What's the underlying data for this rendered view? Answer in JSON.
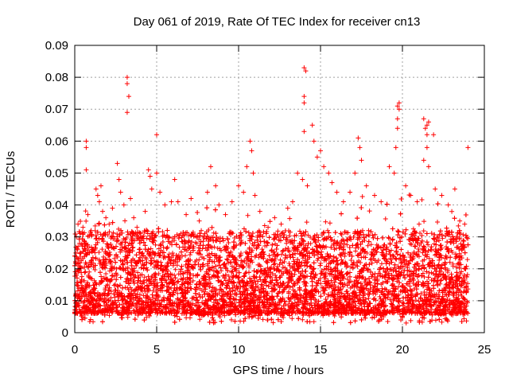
{
  "chart_data": {
    "type": "scatter",
    "title": "Day 061 of 2019, Rate Of TEC Index for receiver cn13",
    "xlabel": "GPS time / hours",
    "ylabel": "ROTI / TECUs",
    "xlim": [
      0,
      25
    ],
    "ylim": [
      0,
      0.09
    ],
    "xticks": [
      0,
      5,
      10,
      15,
      20,
      25
    ],
    "xtick_labels": [
      "0",
      "5",
      "10",
      "15",
      "20",
      "25"
    ],
    "yticks": [
      0,
      0.01,
      0.02,
      0.03,
      0.04,
      0.05,
      0.06,
      0.07,
      0.08,
      0.09
    ],
    "ytick_labels": [
      "0",
      "0.01",
      "0.02",
      "0.03",
      "0.04",
      "0.05",
      "0.06",
      "0.07",
      "0.08",
      "0.09"
    ],
    "grid": true,
    "marker": "+",
    "series": [
      {
        "name": "ROTI",
        "color": "#ff0000",
        "notes": "dense band of points between ~0.005 and ~0.03 TECU across 0-24 h; notable outliers listed below",
        "points": [
          [
            0.1,
            0.03
          ],
          [
            0.2,
            0.034
          ],
          [
            0.3,
            0.028
          ],
          [
            0.5,
            0.033
          ],
          [
            0.7,
            0.06
          ],
          [
            0.7,
            0.058
          ],
          [
            0.7,
            0.051
          ],
          [
            0.8,
            0.037
          ],
          [
            1.0,
            0.032
          ],
          [
            1.3,
            0.045
          ],
          [
            1.4,
            0.043
          ],
          [
            1.5,
            0.041
          ],
          [
            1.6,
            0.046
          ],
          [
            1.7,
            0.038
          ],
          [
            1.9,
            0.036
          ],
          [
            2.1,
            0.034
          ],
          [
            2.3,
            0.039
          ],
          [
            2.6,
            0.053
          ],
          [
            2.7,
            0.048
          ],
          [
            2.8,
            0.044
          ],
          [
            3.0,
            0.04
          ],
          [
            3.2,
            0.08
          ],
          [
            3.2,
            0.078
          ],
          [
            3.3,
            0.074
          ],
          [
            3.2,
            0.069
          ],
          [
            3.4,
            0.042
          ],
          [
            3.6,
            0.036
          ],
          [
            3.8,
            0.033
          ],
          [
            4.0,
            0.03
          ],
          [
            4.3,
            0.038
          ],
          [
            4.5,
            0.051
          ],
          [
            4.6,
            0.049
          ],
          [
            4.7,
            0.045
          ],
          [
            5.0,
            0.062
          ],
          [
            5.0,
            0.05
          ],
          [
            5.2,
            0.044
          ],
          [
            5.5,
            0.04
          ],
          [
            5.9,
            0.041
          ],
          [
            6.1,
            0.048
          ],
          [
            6.3,
            0.041
          ],
          [
            6.8,
            0.037
          ],
          [
            7.1,
            0.042
          ],
          [
            7.6,
            0.035
          ],
          [
            8.1,
            0.044
          ],
          [
            8.3,
            0.052
          ],
          [
            8.6,
            0.046
          ],
          [
            8.8,
            0.04
          ],
          [
            9.2,
            0.037
          ],
          [
            9.6,
            0.041
          ],
          [
            10.0,
            0.046
          ],
          [
            10.3,
            0.044
          ],
          [
            10.5,
            0.052
          ],
          [
            10.7,
            0.06
          ],
          [
            10.8,
            0.057
          ],
          [
            10.9,
            0.05
          ],
          [
            11.0,
            0.043
          ],
          [
            11.3,
            0.038
          ],
          [
            11.8,
            0.033
          ],
          [
            12.2,
            0.036
          ],
          [
            12.6,
            0.034
          ],
          [
            13.0,
            0.039
          ],
          [
            13.3,
            0.041
          ],
          [
            13.6,
            0.05
          ],
          [
            13.9,
            0.048
          ],
          [
            14.0,
            0.083
          ],
          [
            14.1,
            0.082
          ],
          [
            14.0,
            0.074
          ],
          [
            14.0,
            0.072
          ],
          [
            14.0,
            0.063
          ],
          [
            14.2,
            0.046
          ],
          [
            14.5,
            0.065
          ],
          [
            14.6,
            0.06
          ],
          [
            14.8,
            0.055
          ],
          [
            15.0,
            0.057
          ],
          [
            15.2,
            0.052
          ],
          [
            15.5,
            0.05
          ],
          [
            15.7,
            0.047
          ],
          [
            16.0,
            0.044
          ],
          [
            16.4,
            0.041
          ],
          [
            16.8,
            0.044
          ],
          [
            17.1,
            0.05
          ],
          [
            17.3,
            0.061
          ],
          [
            17.4,
            0.058
          ],
          [
            17.5,
            0.054
          ],
          [
            17.8,
            0.046
          ],
          [
            18.3,
            0.043
          ],
          [
            18.7,
            0.041
          ],
          [
            19.2,
            0.052
          ],
          [
            19.5,
            0.05
          ],
          [
            19.7,
            0.071
          ],
          [
            19.8,
            0.072
          ],
          [
            19.8,
            0.07
          ],
          [
            19.7,
            0.067
          ],
          [
            19.7,
            0.064
          ],
          [
            19.6,
            0.058
          ],
          [
            20.2,
            0.046
          ],
          [
            20.5,
            0.043
          ],
          [
            20.9,
            0.041
          ],
          [
            21.3,
            0.067
          ],
          [
            21.5,
            0.065
          ],
          [
            21.6,
            0.066
          ],
          [
            21.4,
            0.064
          ],
          [
            21.5,
            0.062
          ],
          [
            21.5,
            0.058
          ],
          [
            21.3,
            0.054
          ],
          [
            21.6,
            0.052
          ],
          [
            21.9,
            0.062
          ],
          [
            22.0,
            0.045
          ],
          [
            22.4,
            0.043
          ],
          [
            22.8,
            0.04
          ],
          [
            23.2,
            0.045
          ],
          [
            23.5,
            0.035
          ],
          [
            23.8,
            0.034
          ],
          [
            24.0,
            0.058
          ]
        ]
      }
    ]
  }
}
